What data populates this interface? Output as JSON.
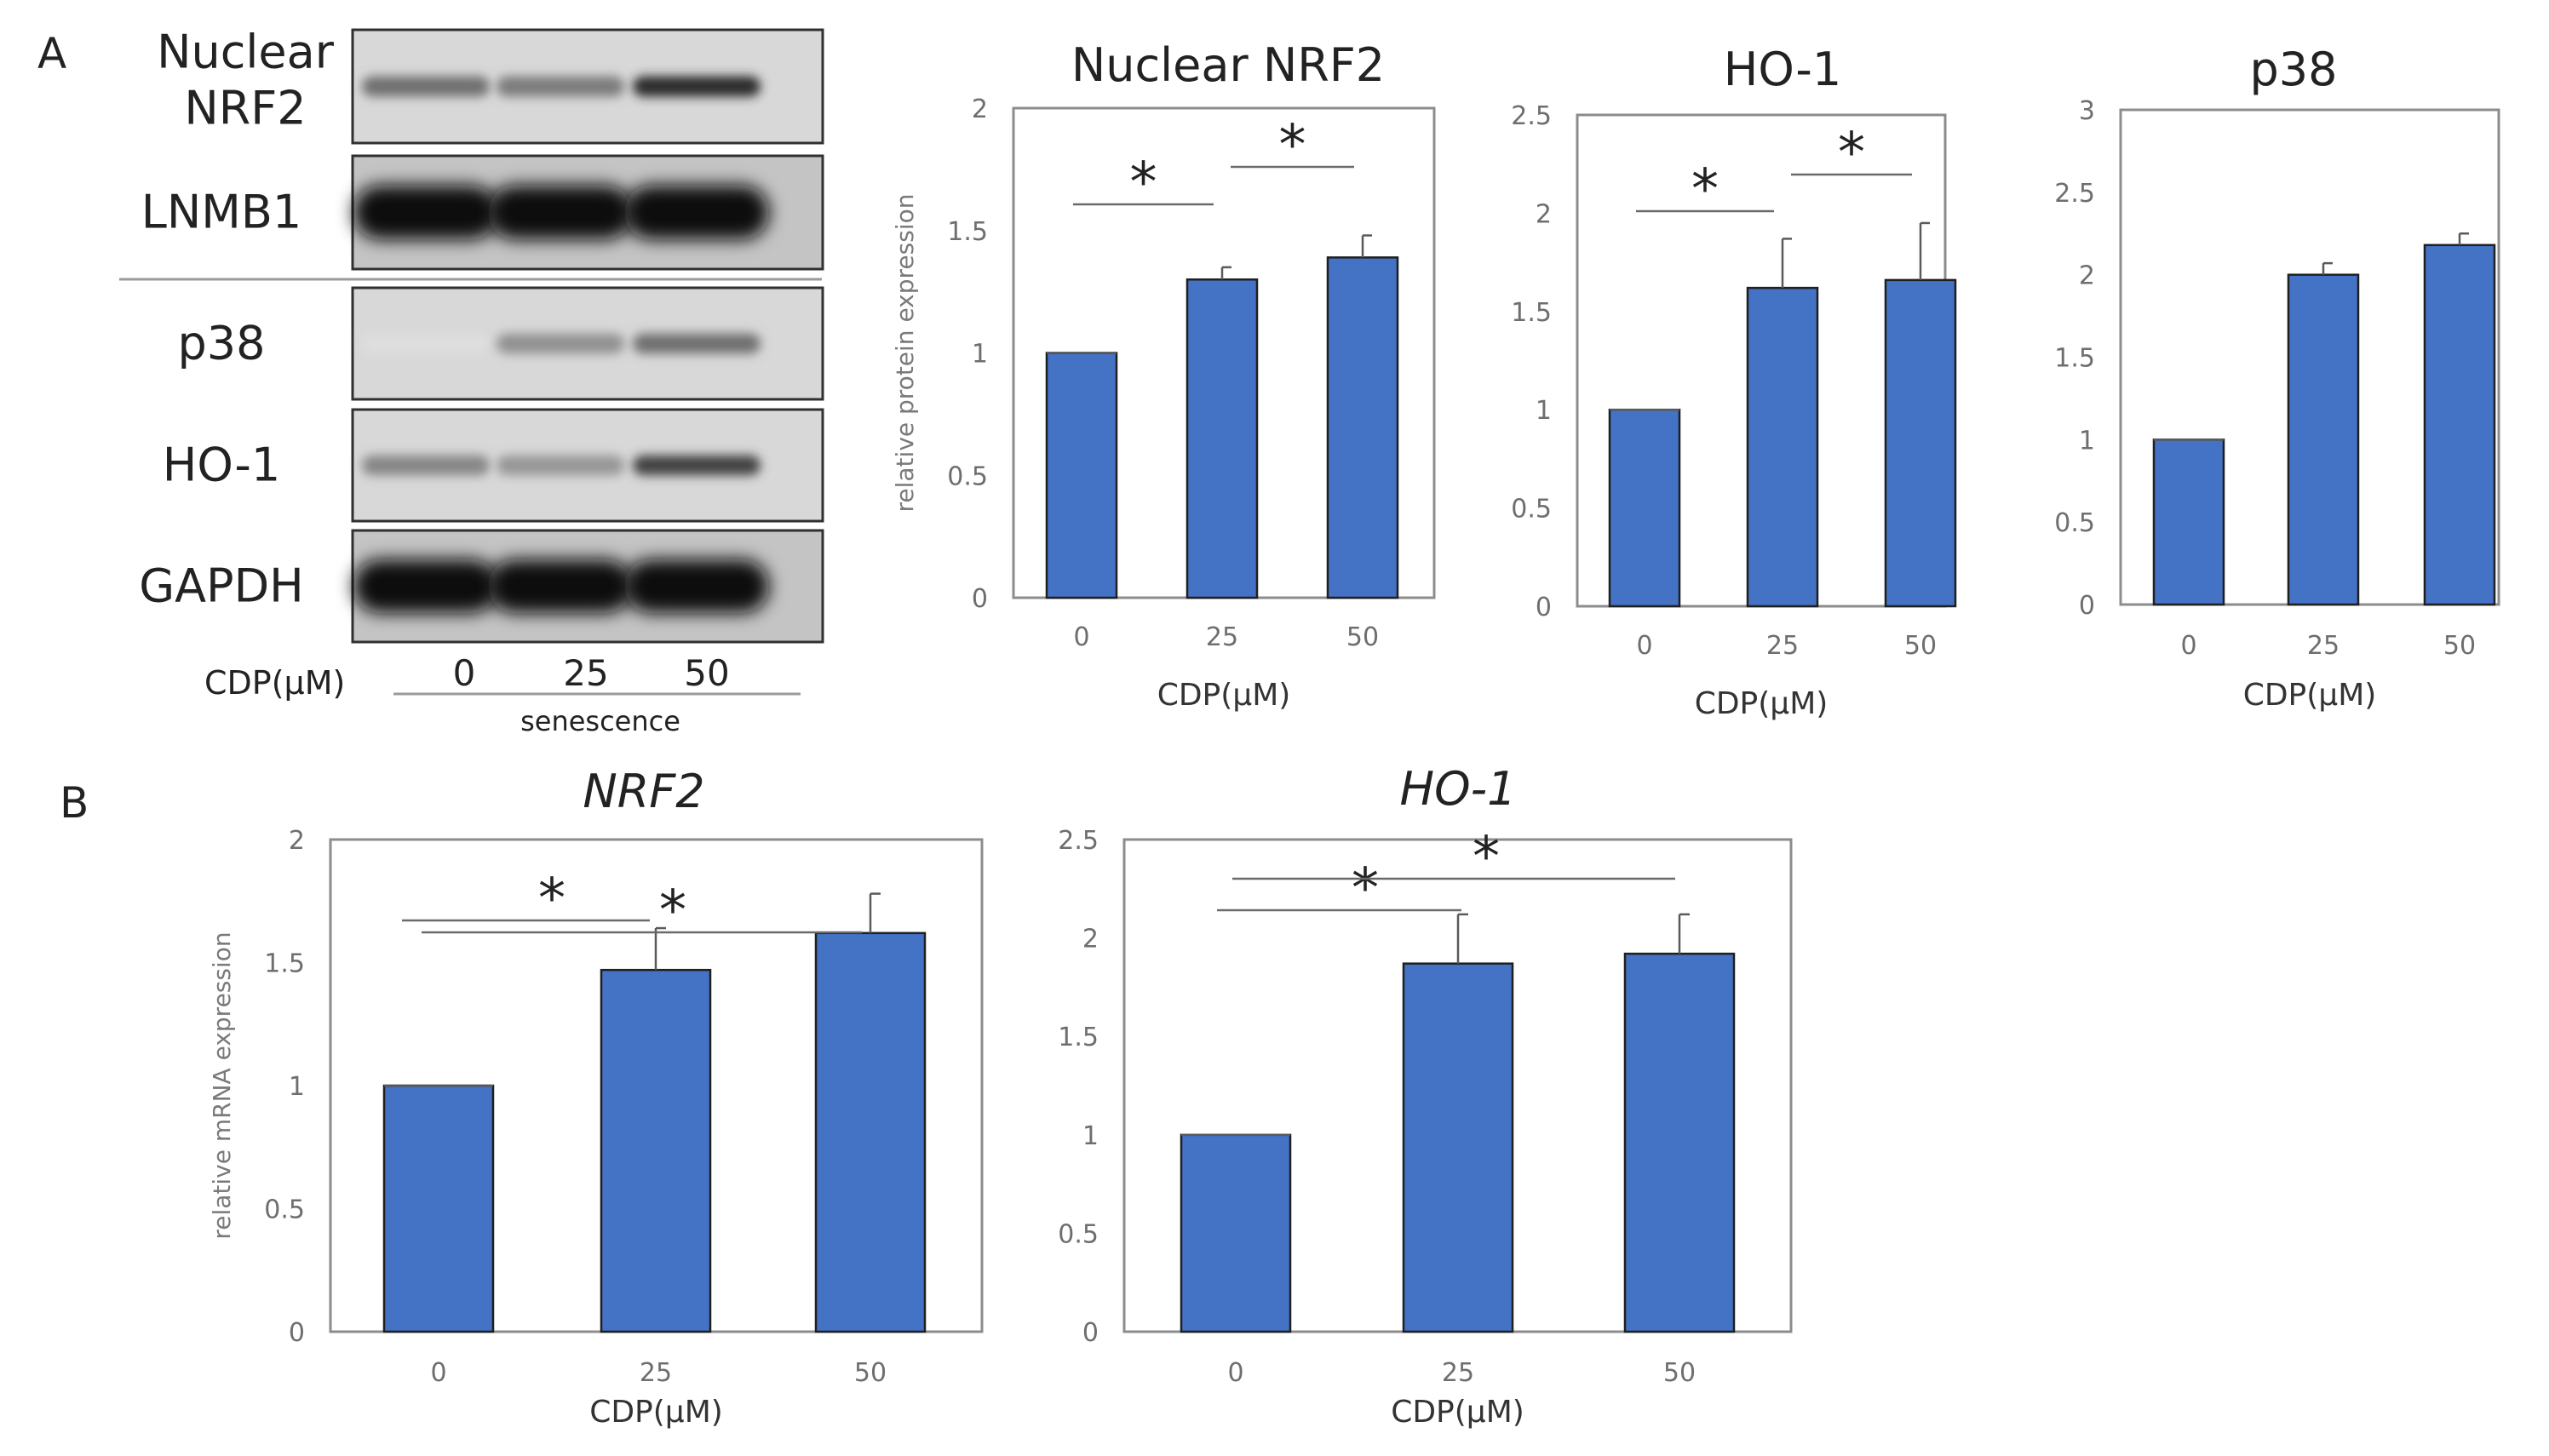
{
  "panel_labels": {
    "a": "A",
    "b": "B"
  },
  "blot": {
    "rows": [
      "Nuclear\nNRF2",
      "LNMB1",
      "p38",
      "HO-1",
      "GAPDH"
    ],
    "row_intensities": [
      [
        0.55,
        0.5,
        0.85
      ],
      [
        1.0,
        1.0,
        1.0
      ],
      [
        0.06,
        0.4,
        0.55
      ],
      [
        0.45,
        0.38,
        0.75
      ],
      [
        1.0,
        1.0,
        1.0
      ]
    ],
    "cdp_label": "CDP(μM)",
    "lanes": [
      "0",
      "25",
      "50"
    ],
    "condition": "senescence"
  },
  "colors": {
    "bar": "#4472c4",
    "bar_edge": "#1f1f1f",
    "frame": "#8c8c8c"
  },
  "chart_data": [
    {
      "type": "bar",
      "title": "Nuclear NRF2",
      "ylabel": "relative protein expression",
      "xlabel": "CDP(μM)",
      "categories": [
        "0",
        "25",
        "50"
      ],
      "values": [
        1.0,
        1.3,
        1.39
      ],
      "errors": [
        0.0,
        0.05,
        0.09
      ],
      "ylim": [
        0,
        2
      ],
      "yticks": [
        "0",
        "0.5",
        "1",
        "1.5",
        "2"
      ],
      "significance": [
        {
          "from": 0,
          "to": 1,
          "label": "*"
        },
        {
          "from": 1,
          "to": 2,
          "label": "*"
        }
      ]
    },
    {
      "type": "bar",
      "title": "HO-1",
      "ylabel": "",
      "xlabel": "CDP(μM)",
      "categories": [
        "0",
        "25",
        "50"
      ],
      "values": [
        1.0,
        1.62,
        1.66
      ],
      "errors": [
        0.0,
        0.25,
        0.29
      ],
      "ylim": [
        0,
        2.5
      ],
      "yticks": [
        "0",
        "0.5",
        "1",
        "1.5",
        "2",
        "2.5"
      ],
      "significance": [
        {
          "from": 0,
          "to": 1,
          "label": "*"
        },
        {
          "from": 1,
          "to": 2,
          "label": "*"
        }
      ]
    },
    {
      "type": "bar",
      "title": "p38",
      "ylabel": "",
      "xlabel": "CDP(μM)",
      "categories": [
        "0",
        "25",
        "50"
      ],
      "values": [
        1.0,
        2.0,
        2.18
      ],
      "errors": [
        0.0,
        0.07,
        0.07
      ],
      "ylim": [
        0,
        3
      ],
      "yticks": [
        "0",
        "0.5",
        "1",
        "1.5",
        "2",
        "2.5",
        "3"
      ],
      "significance": []
    },
    {
      "type": "bar",
      "title": "NRF2",
      "title_italic": true,
      "ylabel": "relative mRNA expression",
      "xlabel": "CDP(μM)",
      "categories": [
        "0",
        "25",
        "50"
      ],
      "values": [
        1.0,
        1.47,
        1.62
      ],
      "errors": [
        0.0,
        0.17,
        0.16
      ],
      "ylim": [
        0,
        2
      ],
      "yticks": [
        "0",
        "0.5",
        "1",
        "1.5",
        "2"
      ],
      "significance": [
        {
          "from": 0,
          "to": 1,
          "label": "*"
        },
        {
          "from": 0,
          "to": 2,
          "label": "*"
        }
      ]
    },
    {
      "type": "bar",
      "title": "HO-1",
      "title_italic": true,
      "ylabel": "",
      "xlabel": "CDP(μM)",
      "categories": [
        "0",
        "25",
        "50"
      ],
      "values": [
        1.0,
        1.87,
        1.92
      ],
      "errors": [
        0.0,
        0.25,
        0.2
      ],
      "ylim": [
        0,
        2.5
      ],
      "yticks": [
        "0",
        "0.5",
        "1",
        "1.5",
        "2",
        "2.5"
      ],
      "significance": [
        {
          "from": 0,
          "to": 1,
          "label": "*"
        },
        {
          "from": 0,
          "to": 2,
          "label": "*"
        }
      ]
    }
  ]
}
